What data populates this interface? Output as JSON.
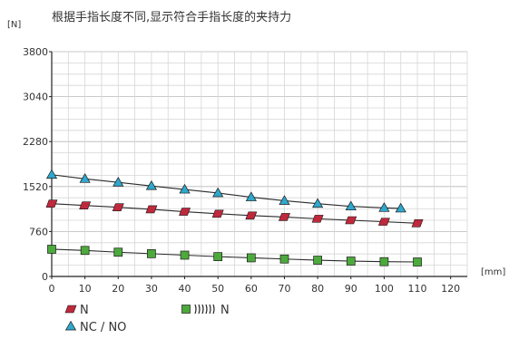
{
  "chart_data": {
    "type": "line",
    "title": "根据手指长度不同,显示符合手指长度的夹持力",
    "ylabel": "[N]",
    "xlabel": "[mm]",
    "xlim": [
      0,
      125
    ],
    "ylim": [
      0,
      3800
    ],
    "x_ticks": [
      0,
      10,
      20,
      30,
      40,
      50,
      60,
      70,
      80,
      90,
      100,
      110,
      120
    ],
    "y_ticks": [
      0,
      760,
      1520,
      2280,
      3040,
      3800
    ],
    "grid": true,
    "legend_position": "bottom-left",
    "series": [
      {
        "name": "N",
        "marker": "parallelogram",
        "color": "#c0283c",
        "x": [
          0,
          10,
          20,
          30,
          40,
          50,
          60,
          70,
          80,
          90,
          100,
          110
        ],
        "y": [
          1230,
          1200,
          1170,
          1135,
          1095,
          1060,
          1030,
          1005,
          975,
          950,
          925,
          900
        ]
      },
      {
        "name": "NC / NO",
        "marker": "triangle",
        "color": "#2fa8cc",
        "x": [
          0,
          10,
          20,
          30,
          40,
          50,
          60,
          70,
          80,
          90,
          100,
          105
        ],
        "y": [
          1720,
          1650,
          1590,
          1530,
          1470,
          1410,
          1340,
          1280,
          1230,
          1185,
          1160,
          1150
        ]
      },
      {
        "name": "N",
        "marker": "square",
        "marker_prefix_icon": "spring-icon",
        "color": "#4caa3c",
        "x": [
          0,
          10,
          20,
          30,
          40,
          50,
          60,
          70,
          80,
          90,
          100,
          110
        ],
        "y": [
          460,
          440,
          410,
          385,
          360,
          335,
          315,
          295,
          275,
          260,
          250,
          245
        ]
      }
    ]
  }
}
